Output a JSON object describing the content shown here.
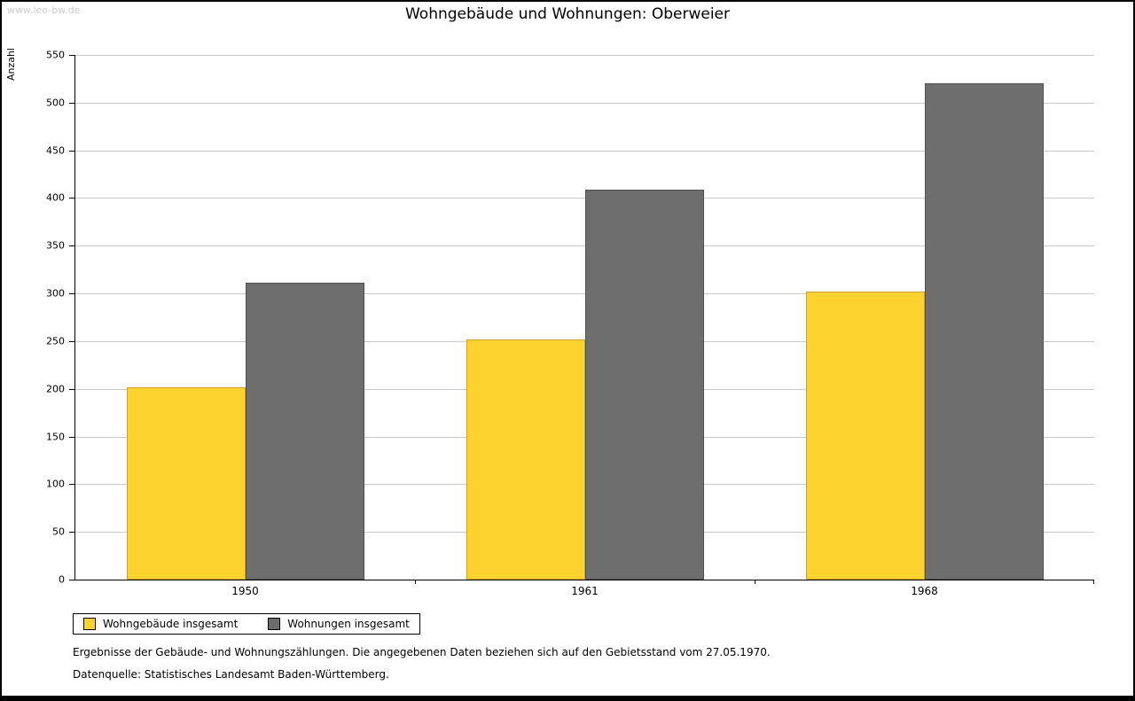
{
  "watermark": "www.leo-bw.de",
  "title": "Wohngebäude und Wohnungen: Oberweier",
  "chart_data": {
    "type": "bar",
    "categories": [
      "1950",
      "1961",
      "1968"
    ],
    "series": [
      {
        "name": "Wohngebäude insgesamt",
        "color": "#FCD32E",
        "border_color": "#C9A227",
        "values": [
          202,
          252,
          302
        ]
      },
      {
        "name": "Wohnungen insgesamt",
        "color": "#6E6E6E",
        "border_color": "#4F4F4F",
        "values": [
          311,
          409,
          520
        ]
      }
    ],
    "title": "Wohngebäude und Wohnungen: Oberweier",
    "xlabel": "",
    "ylabel": "Anzahl",
    "ylim": [
      0,
      550
    ],
    "ytick_step": 50,
    "grid": true,
    "legend_position": "bottom-left"
  },
  "footer": {
    "note": "Ergebnisse der Gebäude- und Wohnungszählungen. Die angegebenen Daten beziehen sich auf den Gebietsstand vom 27.05.1970.",
    "source": "Datenquelle: Statistisches Landesamt Baden-Württemberg."
  }
}
